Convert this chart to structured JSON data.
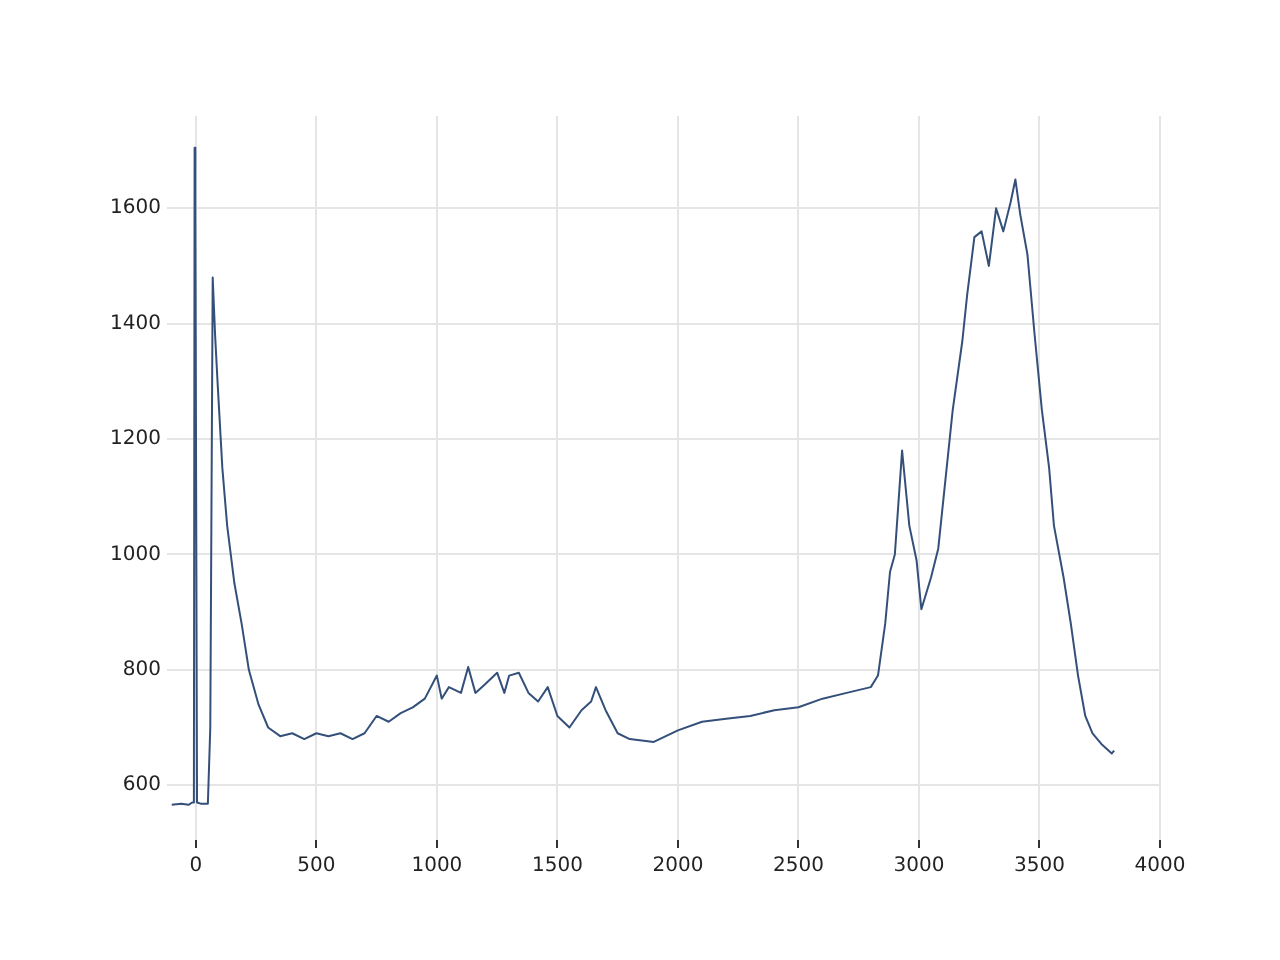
{
  "chart_data": {
    "type": "line",
    "xlim": [
      -120,
      4000
    ],
    "ylim": [
      505,
      1760
    ],
    "xticks": [
      0,
      500,
      1000,
      1500,
      2000,
      2500,
      3000,
      3500,
      4000
    ],
    "yticks": [
      600,
      800,
      1000,
      1200,
      1400,
      1600
    ],
    "grid": true,
    "legend": false,
    "marker": "none",
    "line_style": "solid",
    "series": [
      {
        "color": "#34507a",
        "x": [
          -100,
          -60,
          -30,
          -15,
          -8,
          -5,
          -2,
          5,
          20,
          50,
          60,
          70,
          80,
          90,
          110,
          130,
          160,
          190,
          220,
          260,
          300,
          350,
          400,
          450,
          500,
          550,
          600,
          650,
          700,
          750,
          800,
          850,
          900,
          950,
          1000,
          1020,
          1050,
          1100,
          1130,
          1160,
          1200,
          1250,
          1280,
          1300,
          1340,
          1380,
          1420,
          1460,
          1500,
          1550,
          1600,
          1640,
          1660,
          1700,
          1750,
          1800,
          1900,
          2000,
          2100,
          2200,
          2300,
          2400,
          2500,
          2600,
          2700,
          2800,
          2830,
          2860,
          2880,
          2900,
          2930,
          2960,
          2990,
          3010,
          3050,
          3080,
          3110,
          3140,
          3180,
          3200,
          3230,
          3260,
          3290,
          3320,
          3350,
          3380,
          3400,
          3420,
          3450,
          3480,
          3510,
          3540,
          3560,
          3600,
          3630,
          3660,
          3690,
          3720,
          3760,
          3800,
          3810
        ],
        "values": [
          566,
          568,
          566,
          570,
          575,
          1705,
          1600,
          570,
          568,
          568,
          700,
          1480,
          1380,
          1300,
          1150,
          1050,
          950,
          880,
          800,
          740,
          700,
          685,
          690,
          680,
          690,
          685,
          690,
          680,
          690,
          720,
          710,
          725,
          735,
          750,
          790,
          750,
          770,
          760,
          805,
          760,
          775,
          795,
          760,
          790,
          795,
          760,
          745,
          770,
          720,
          700,
          730,
          745,
          770,
          730,
          690,
          680,
          675,
          695,
          710,
          715,
          720,
          730,
          735,
          750,
          760,
          770,
          790,
          880,
          970,
          1000,
          1180,
          1050,
          990,
          905,
          960,
          1010,
          1130,
          1250,
          1370,
          1450,
          1550,
          1560,
          1500,
          1600,
          1560,
          1610,
          1650,
          1590,
          1520,
          1380,
          1250,
          1150,
          1050,
          960,
          880,
          790,
          720,
          690,
          670,
          655,
          660
        ]
      }
    ]
  }
}
